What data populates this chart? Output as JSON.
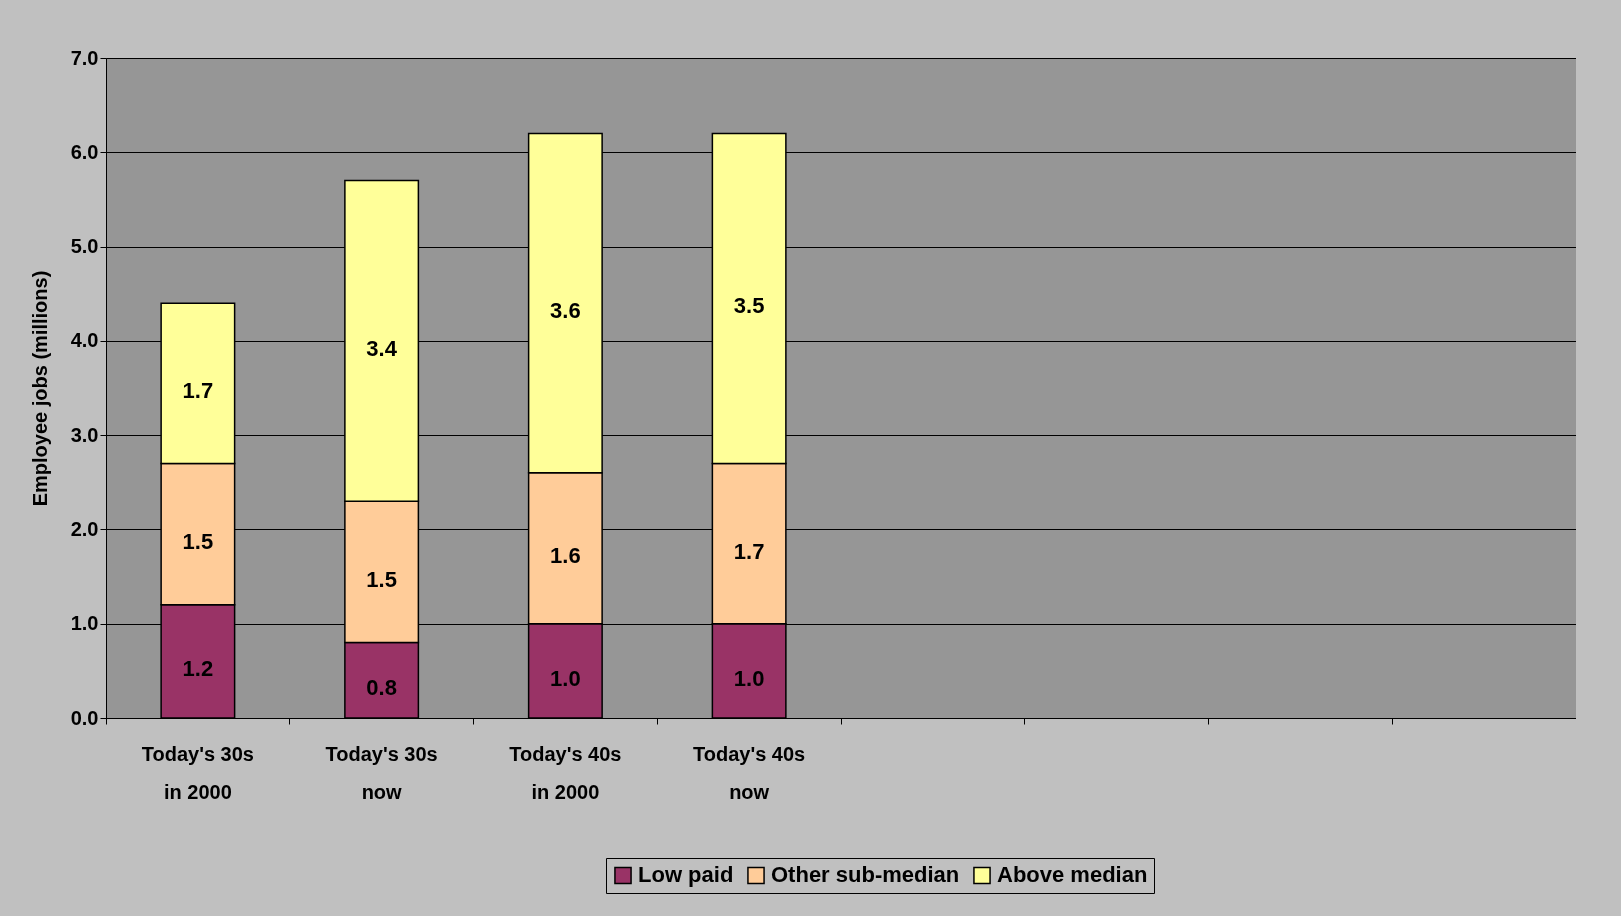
{
  "chart_data": {
    "type": "bar",
    "stacked": true,
    "ylabel": "Employee jobs (millions)",
    "categories": [
      "Today's 30s\nin 2000",
      "Today's 30s\nnow",
      "Today's 40s\nin 2000",
      "Today's 40s\nnow",
      null,
      null,
      null,
      null
    ],
    "series": [
      {
        "name": "Low paid",
        "color": "#993366",
        "values": [
          1.2,
          0.8,
          1.0,
          1.0,
          null,
          null,
          null,
          null
        ],
        "value_labels": [
          "1.2",
          "0.8",
          "1.0",
          "1.0",
          null,
          null,
          null,
          null
        ]
      },
      {
        "name": "Other sub-median",
        "color": "#ffcc99",
        "values": [
          1.5,
          1.5,
          1.6,
          1.7,
          null,
          null,
          null,
          null
        ],
        "value_labels": [
          "1.5",
          "1.5",
          "1.6",
          "1.7",
          null,
          null,
          null,
          null
        ]
      },
      {
        "name": "Above median",
        "color": "#ffff99",
        "values": [
          1.7,
          3.4,
          3.6,
          3.5,
          null,
          null,
          null,
          null
        ],
        "value_labels": [
          "1.7",
          "3.4",
          "3.6",
          "3.5",
          null,
          null,
          null,
          null
        ]
      }
    ],
    "ylim": [
      0,
      7
    ],
    "yticks": [
      {
        "value": 0,
        "label": "0.0"
      },
      {
        "value": 1,
        "label": "1.0"
      },
      {
        "value": 2,
        "label": "2.0"
      },
      {
        "value": 3,
        "label": "3.0"
      },
      {
        "value": 4,
        "label": "4.0"
      },
      {
        "value": 5,
        "label": "5.0"
      },
      {
        "value": 6,
        "label": "6.0"
      },
      {
        "value": 7,
        "label": "7.0"
      }
    ],
    "grid": "y",
    "legend": "bottom"
  }
}
